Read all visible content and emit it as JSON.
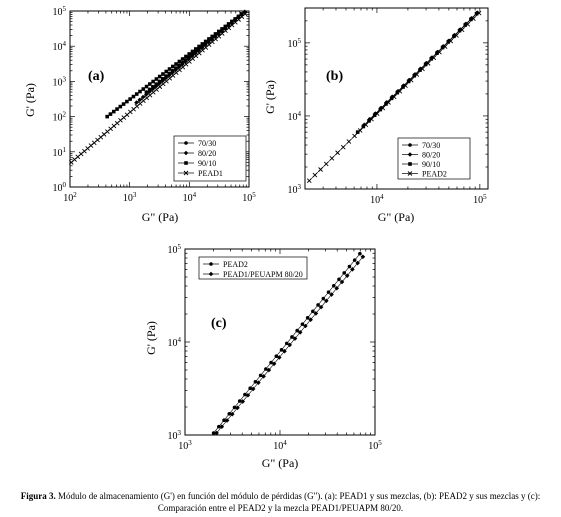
{
  "chart_data": [
    {
      "panel": "(a)",
      "type": "scatter",
      "xlabel": "G\" (Pa)",
      "ylabel": "G' (Pa)",
      "xscale": "log",
      "yscale": "log",
      "xlim": [
        100,
        100000
      ],
      "ylim": [
        1,
        100000
      ],
      "xticks": [
        100,
        1000,
        10000,
        100000
      ],
      "yticks": [
        1,
        10,
        100,
        1000,
        10000,
        100000
      ],
      "xtick_labels": [
        "10^2",
        "10^3",
        "10^4",
        "10^5"
      ],
      "ytick_labels": [
        "10^0",
        "10^1",
        "10^2",
        "10^3",
        "10^4",
        "10^5"
      ],
      "legend_position": "bottom-right",
      "series": [
        {
          "name": "70/30",
          "marker": "circle",
          "x_range": [
            1900,
            88000
          ],
          "y_range": [
            500,
            98000
          ]
        },
        {
          "name": "80/20",
          "marker": "diamond",
          "x_range": [
            1300,
            85000
          ],
          "y_range": [
            250,
            95000
          ]
        },
        {
          "name": "90/10",
          "marker": "square",
          "x_range": [
            420,
            82000
          ],
          "y_range": [
            100,
            92000
          ]
        },
        {
          "name": "PEAD1",
          "marker": "cross",
          "x_range": [
            105,
            95000
          ],
          "y_range": [
            5,
            95000
          ]
        }
      ]
    },
    {
      "panel": "(b)",
      "type": "scatter",
      "xlabel": "G\" (Pa)",
      "ylabel": "G' (Pa)",
      "xscale": "log",
      "yscale": "log",
      "xlim": [
        2000,
        120000
      ],
      "ylim": [
        1000,
        300000
      ],
      "xticks": [
        10000,
        100000
      ],
      "yticks": [
        1000,
        10000,
        100000
      ],
      "xtick_labels": [
        "10^4",
        "10^5"
      ],
      "ytick_labels": [
        "10^3",
        "10^4",
        "10^5"
      ],
      "legend_position": "bottom-right",
      "series": [
        {
          "name": "70/30",
          "marker": "circle",
          "x_range": [
            8500,
            105000
          ],
          "y_range": [
            9000,
            300000
          ]
        },
        {
          "name": "80/20",
          "marker": "diamond",
          "x_range": [
            7500,
            100000
          ],
          "y_range": [
            7500,
            280000
          ]
        },
        {
          "name": "90/10",
          "marker": "square",
          "x_range": [
            6500,
            98000
          ],
          "y_range": [
            6000,
            270000
          ]
        },
        {
          "name": "PEAD2",
          "marker": "cross",
          "x_range": [
            2200,
            105000
          ],
          "y_range": [
            1300,
            280000
          ]
        }
      ]
    },
    {
      "panel": "(c)",
      "type": "scatter",
      "xlabel": "G\" (Pa)",
      "ylabel": "G' (Pa)",
      "xscale": "log",
      "yscale": "log",
      "xlim": [
        1000,
        100000
      ],
      "ylim": [
        1000,
        100000
      ],
      "xticks": [
        1000,
        10000,
        100000
      ],
      "yticks": [
        1000,
        10000,
        100000
      ],
      "xtick_labels": [
        "10^3",
        "10^4",
        "10^5"
      ],
      "ytick_labels": [
        "10^3",
        "10^4",
        "10^5"
      ],
      "legend_position": "top-left",
      "series": [
        {
          "name": "PEAD2",
          "marker": "circle",
          "x_range": [
            2000,
            70000
          ],
          "y_range": [
            1050,
            90000
          ]
        },
        {
          "name": "PEAD1/PEUAPM 80/20",
          "marker": "diamond",
          "x_range": [
            2150,
            80000
          ],
          "y_range": [
            1050,
            90000
          ]
        }
      ]
    }
  ],
  "caption": {
    "label": "Figura 3.",
    "text": "Módulo de almacenamiento (G') en función del módulo de pérdidas (G\"). (a): PEAD1 y sus mezclas, (b): PEAD2 y sus mezclas y (c): Comparación entre el PEAD2 y la mezcla PEAD1/PEUAPM 80/20."
  }
}
